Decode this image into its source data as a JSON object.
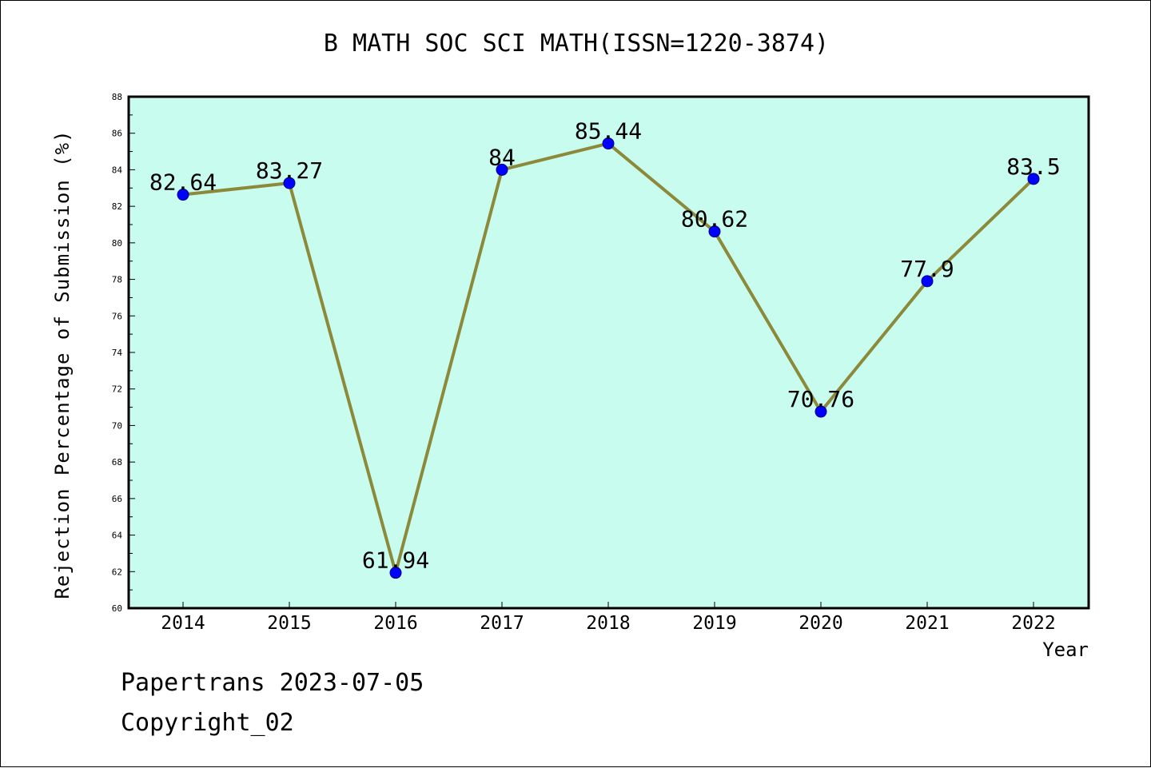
{
  "chart_data": {
    "type": "line",
    "title": "B MATH SOC SCI MATH(ISSN=1220-3874)",
    "xlabel": "Year",
    "ylabel": "Rejection Percentage of Submission (%)",
    "categories": [
      "2014",
      "2015",
      "2016",
      "2017",
      "2018",
      "2019",
      "2020",
      "2021",
      "2022"
    ],
    "series": [
      {
        "values": [
          82.64,
          83.27,
          61.94,
          84,
          85.44,
          80.62,
          70.76,
          77.9,
          83.5
        ],
        "labels": [
          "82.64",
          "83.27",
          "61.94",
          "84",
          "85.44",
          "80.62",
          "70.76",
          "77.9",
          "83.5"
        ]
      }
    ],
    "ylim": [
      60,
      88
    ],
    "yticks": [
      "60",
      "62",
      "64",
      "66",
      "68",
      "70",
      "72",
      "74",
      "76",
      "78",
      "80",
      "82",
      "84",
      "86",
      "88"
    ],
    "grid": false,
    "colors": {
      "plot_background": "#c8fcee",
      "line": "#8c8a3a",
      "marker": "#0000ff"
    }
  },
  "footer": {
    "line1": "Papertrans 2023-07-05",
    "line2": "Copyright_02"
  }
}
